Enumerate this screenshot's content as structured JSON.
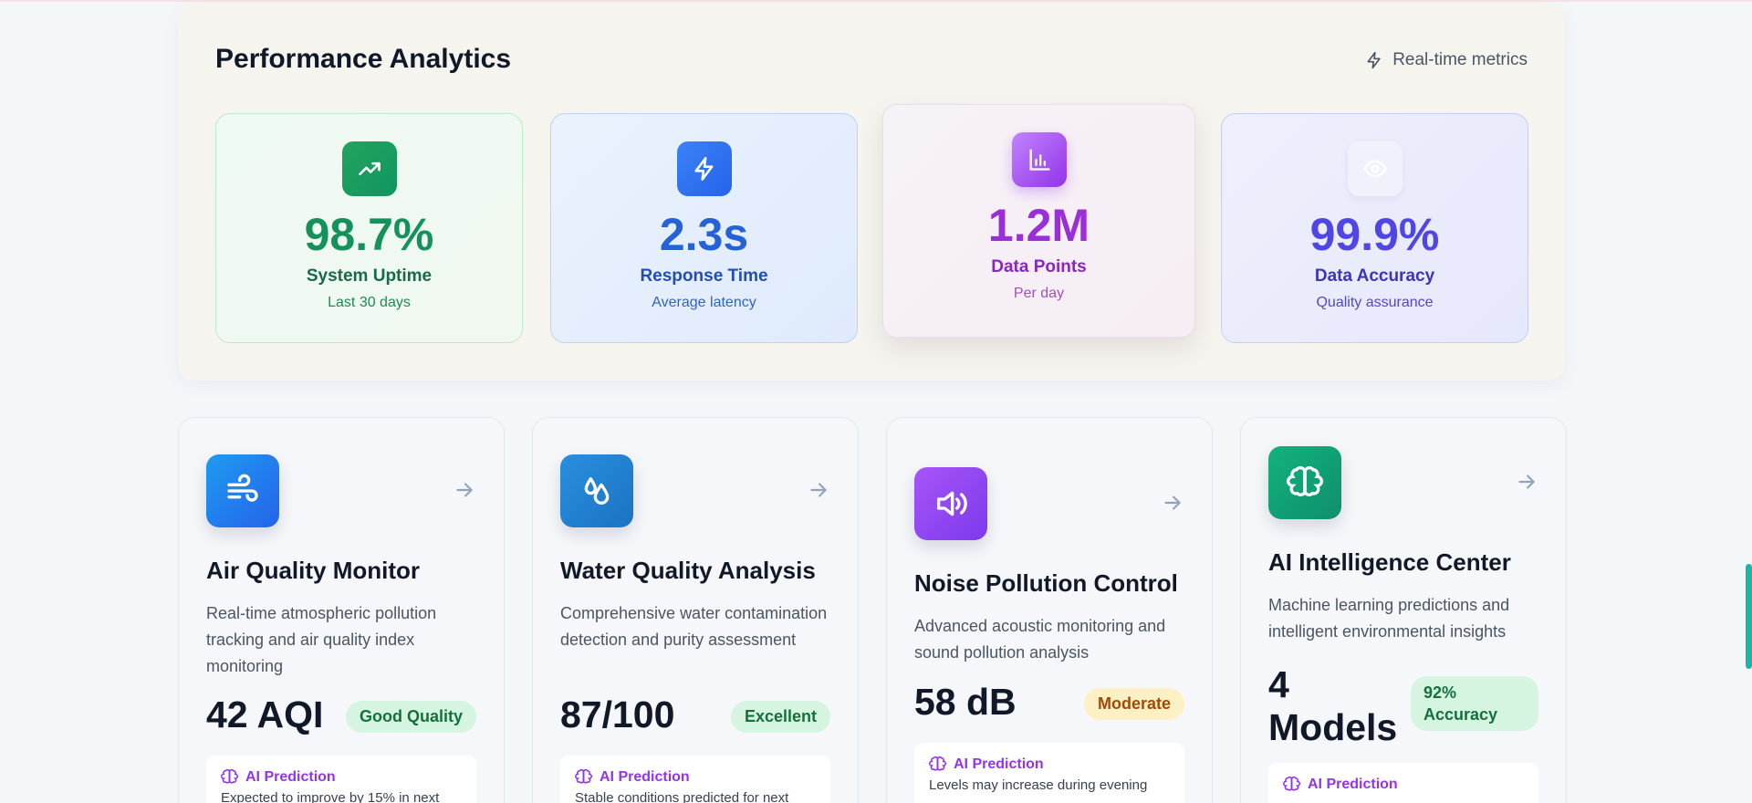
{
  "analytics": {
    "title": "Performance Analytics",
    "realtime_label": "Real-time metrics",
    "metrics": [
      {
        "value": "98.7%",
        "label": "System Uptime",
        "sub": "Last 30 days",
        "icon": "trending-up-icon",
        "color": "#15925c"
      },
      {
        "value": "2.3s",
        "label": "Response Time",
        "sub": "Average latency",
        "icon": "bolt-icon",
        "color": "#2462d8"
      },
      {
        "value": "1.2M",
        "label": "Data Points",
        "sub": "Per day",
        "icon": "bar-chart-icon",
        "color": "#9b2fd6"
      },
      {
        "value": "99.9%",
        "label": "Data Accuracy",
        "sub": "Quality assurance",
        "icon": "eye-icon",
        "color": "#4f46e5"
      }
    ]
  },
  "modules": [
    {
      "title": "Air Quality Monitor",
      "description": "Real-time atmospheric pollution tracking and air quality index monitoring",
      "value": "42 AQI",
      "badge": "Good Quality",
      "prediction_label": "AI Prediction",
      "prediction_text": "Expected to improve by 15% in next",
      "icon": "wind-icon",
      "color": "#2563eb"
    },
    {
      "title": "Water Quality Analysis",
      "description": "Comprehensive water contamination detection and purity assessment",
      "value": "87/100",
      "badge": "Excellent",
      "prediction_label": "AI Prediction",
      "prediction_text": "Stable conditions predicted for next",
      "icon": "droplets-icon",
      "color": "#1d7fd0"
    },
    {
      "title": "Noise Pollution Control",
      "description": "Advanced acoustic monitoring and sound pollution analysis",
      "value": "58 dB",
      "badge": "Moderate",
      "prediction_label": "AI Prediction",
      "prediction_text": "Levels may increase during evening",
      "icon": "speaker-icon",
      "color": "#8b5cf6"
    },
    {
      "title": "AI Intelligence Center",
      "description": "Machine learning predictions and intelligent environmental insights",
      "value": "4 Models",
      "badge": "92% Accuracy",
      "prediction_label": "AI Prediction",
      "prediction_text": "",
      "icon": "brain-icon",
      "color": "#10a37a"
    }
  ]
}
